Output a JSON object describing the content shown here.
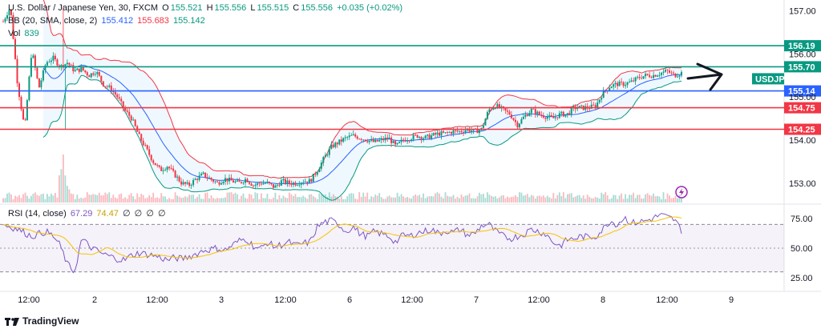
{
  "header": {
    "symbol": "U.S. Dollar / Japanese Yen, 30, FXCM",
    "o_label": "O",
    "o": "155.521",
    "h_label": "H",
    "h": "155.556",
    "l_label": "L",
    "l": "155.515",
    "c_label": "C",
    "c": "155.556",
    "change": "+0.035 (+0.02%)"
  },
  "bb": {
    "label": "BB (20, SMA, close, 2)",
    "basis": "155.412",
    "upper": "155.683",
    "lower": "155.142"
  },
  "vol": {
    "label": "Vol",
    "value": "839"
  },
  "rsi": {
    "label": "RSI (14, close)",
    "value": "67.29",
    "ma": "74.47",
    "extras": [
      "∅",
      "∅",
      "∅",
      "∅"
    ]
  },
  "brand": {
    "name": "TradingView"
  },
  "symbol_badge": "USDJPY",
  "colors": {
    "up": "#089981",
    "down": "#f23645",
    "bb_basis": "#2962ff",
    "bb_upper": "#f23645",
    "bb_lower": "#089981",
    "rsi_line": "#7e57c2",
    "rsi_ma": "#f5c400",
    "level_teal": "#089981",
    "level_blue": "#2962ff",
    "level_red": "#f23645"
  },
  "chart_data": {
    "type": "candlestick",
    "price_axis": {
      "ticks": [
        157.0,
        156.0,
        155.0,
        154.0,
        153.0
      ],
      "ylim": [
        152.55,
        157.25
      ]
    },
    "rsi_axis": {
      "ticks": [
        75.0,
        50.0,
        25.0
      ],
      "ylim": [
        15,
        85
      ]
    },
    "time_axis": {
      "ticks": [
        "12:00",
        "2",
        "12:00",
        "3",
        "12:00",
        "6",
        "12:00",
        "7",
        "12:00",
        "8",
        "12:00",
        "9"
      ]
    },
    "horizontal_levels": [
      {
        "value": 156.19,
        "label": "156.19",
        "color": "#089981"
      },
      {
        "value": 155.7,
        "label": "155.70",
        "color": "#089981"
      },
      {
        "value": 155.14,
        "label": "155.14",
        "color": "#2962ff"
      },
      {
        "value": 154.75,
        "label": "154.75",
        "color": "#f23645"
      },
      {
        "value": 154.25,
        "label": "154.25",
        "color": "#f23645"
      }
    ],
    "price_path": [
      156.75,
      157.1,
      155.3,
      154.25,
      156.1,
      155.2,
      155.8,
      155.9,
      155.7,
      155.8,
      155.6,
      155.65,
      155.5,
      155.6,
      155.3,
      155.2,
      155.0,
      154.7,
      154.5,
      154.1,
      153.8,
      153.5,
      153.3,
      153.4,
      153.2,
      153.0,
      152.95,
      153.1,
      153.2,
      153.1,
      153.0,
      153.1,
      153.05,
      153.0,
      153.1,
      152.95,
      153.0,
      153.0,
      152.9,
      153.05,
      153.0,
      153.0,
      153.05,
      153.05,
      153.3,
      153.6,
      153.85,
      153.95,
      154.05,
      154.1,
      154.05,
      154.0,
      153.95,
      154.0,
      154.05,
      153.85,
      154.0,
      154.05,
      154.1,
      154.05,
      154.1,
      154.15,
      154.15,
      154.2,
      154.2,
      154.25,
      154.2,
      154.25,
      154.7,
      154.8,
      154.7,
      154.6,
      154.35,
      154.55,
      154.7,
      154.6,
      154.55,
      154.5,
      154.6,
      154.6,
      154.75,
      154.75,
      154.75,
      154.8,
      155.1,
      155.25,
      155.3,
      155.3,
      155.35,
      155.45,
      155.5,
      155.5,
      155.55,
      155.6,
      155.5,
      155.56
    ],
    "rsi_path": [
      70,
      68,
      66,
      63,
      60,
      62,
      64,
      60,
      52,
      36,
      30,
      58,
      52,
      48,
      45,
      43,
      41,
      40,
      44,
      46,
      45,
      44,
      42,
      40,
      42,
      41,
      43,
      45,
      48,
      49,
      50,
      48,
      52,
      56,
      58,
      52,
      49,
      55,
      51,
      53,
      55,
      52,
      54,
      55,
      68,
      72,
      73,
      70,
      64,
      68,
      62,
      60,
      64,
      62,
      60,
      55,
      61,
      60,
      63,
      64,
      66,
      62,
      65,
      63,
      66,
      61,
      62,
      69,
      70,
      64,
      60,
      58,
      60,
      62,
      66,
      64,
      62,
      55,
      52,
      57,
      58,
      60,
      59,
      60,
      66,
      73,
      70,
      76,
      71,
      72,
      73,
      75,
      78,
      76,
      74,
      65
    ]
  }
}
